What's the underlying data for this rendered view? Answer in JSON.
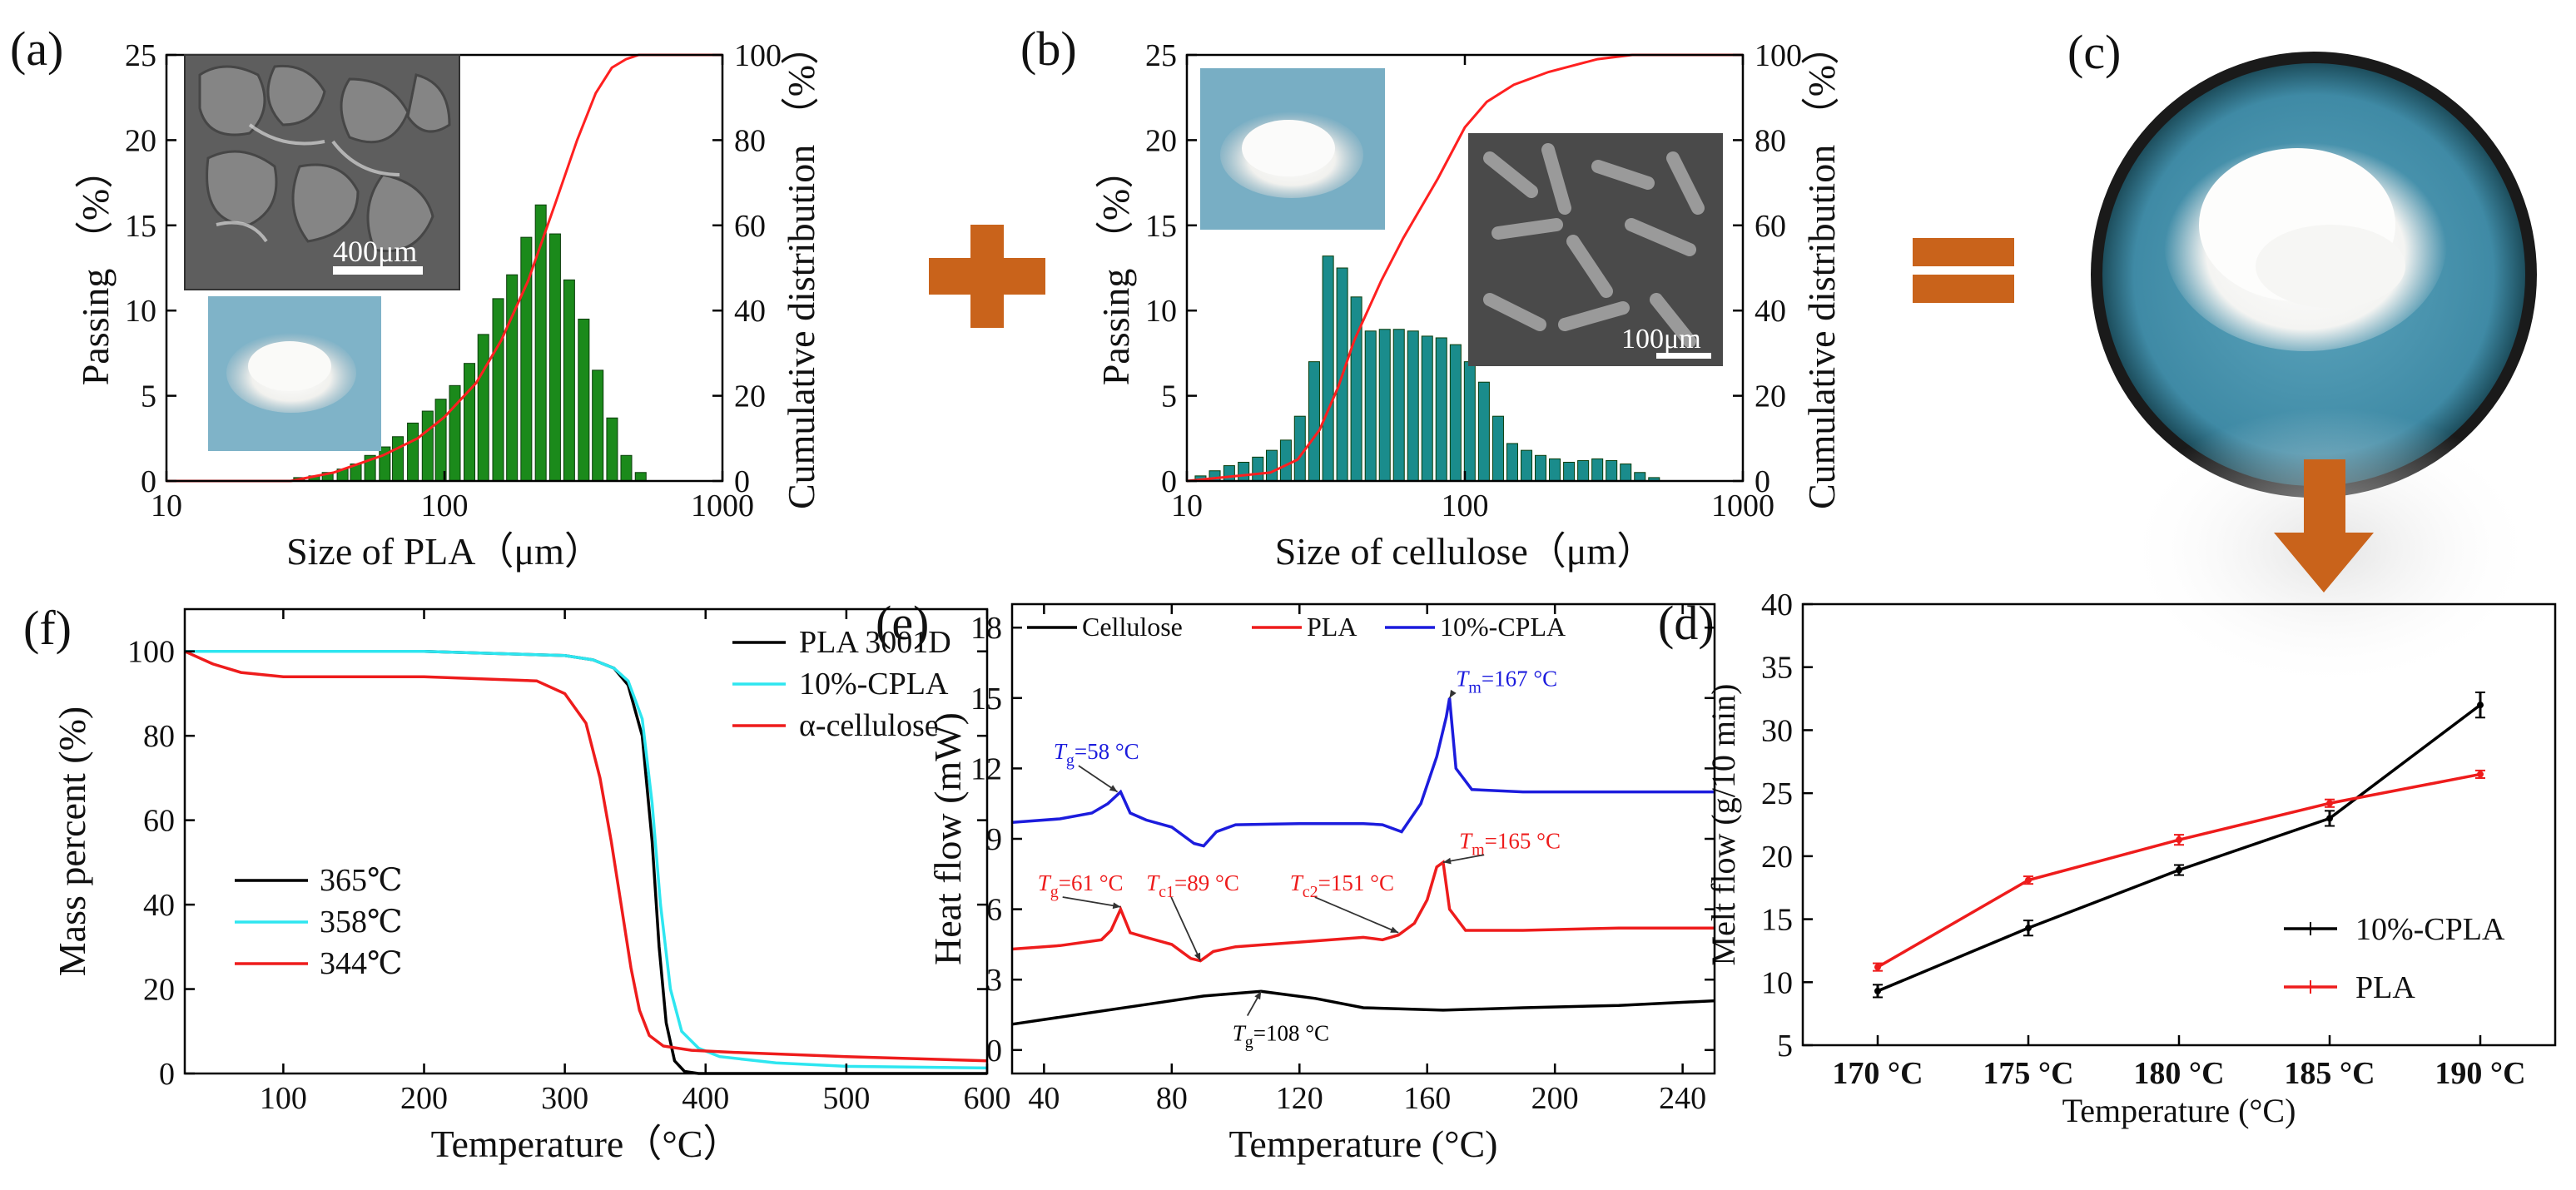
{
  "colors": {
    "bar_green": "#1b8a1b",
    "bar_teal": "#1a8c8c",
    "cum_red": "#ff2020",
    "plus_orange": "#c9631b",
    "sem_dark": "#6a6a6a",
    "powder_bg": "#7fb3c8",
    "black": "#000000",
    "cyan": "#2ee6f0",
    "red": "#ee1c1c",
    "blue": "#1c1cdd"
  },
  "panels": {
    "a": {
      "label": "(a)",
      "xlabel": "Size of PLA（μm）",
      "ylabel": "Passing  （%）",
      "y2label": "Cumulative distribution  （%）",
      "scale_bar": "400μm"
    },
    "b": {
      "label": "(b)",
      "xlabel": "Size of cellulose（μm）",
      "ylabel": "Passing  （%）",
      "y2label": "Cumulative distribution  （%）",
      "scale_bar": "100μm"
    },
    "c": {
      "label": "(c)"
    },
    "d": {
      "label": "(d)"
    },
    "e": {
      "label": "(e)"
    },
    "f": {
      "label": "(f)"
    }
  },
  "chart_data": [
    {
      "id": "a",
      "type": "bar",
      "xscale": "log",
      "xlim": [
        10,
        1000
      ],
      "ylim": [
        0,
        25
      ],
      "y2lim": [
        0,
        100
      ],
      "xticks": [
        10,
        100,
        1000
      ],
      "xtick_labels": [
        "10",
        "100",
        "1000"
      ],
      "yticks": [
        0,
        5,
        10,
        15,
        20,
        25
      ],
      "ytick_labels": [
        "0",
        "5",
        "10",
        "15",
        "20",
        "25"
      ],
      "y2ticks": [
        0,
        20,
        40,
        60,
        80,
        100
      ],
      "y2tick_labels": [
        "0",
        "20",
        "40",
        "60",
        "80",
        "100"
      ],
      "x": [
        30,
        34,
        38,
        43,
        48,
        54,
        61,
        68,
        77,
        87,
        97,
        109,
        123,
        138,
        156,
        175,
        197,
        222,
        250,
        281,
        317,
        356,
        401,
        451,
        508
      ],
      "values": [
        0.2,
        0.3,
        0.5,
        0.7,
        1.0,
        1.5,
        2.0,
        2.6,
        3.4,
        4.1,
        4.8,
        5.6,
        6.9,
        8.6,
        10.7,
        12.1,
        14.3,
        16.2,
        14.5,
        11.8,
        9.5,
        6.5,
        3.7,
        1.5,
        0.5
      ],
      "cumulative": {
        "x": [
          10,
          28,
          40,
          60,
          80,
          100,
          130,
          160,
          200,
          250,
          300,
          350,
          400,
          450,
          500,
          600,
          1000
        ],
        "y": [
          0,
          0,
          2,
          6,
          10,
          15,
          23,
          33,
          47,
          65,
          80,
          91,
          97,
          99,
          100,
          100,
          100
        ]
      }
    },
    {
      "id": "b",
      "type": "bar",
      "xscale": "log",
      "xlim": [
        10,
        1000
      ],
      "ylim": [
        0,
        25
      ],
      "y2lim": [
        0,
        100
      ],
      "xticks": [
        10,
        100,
        1000
      ],
      "xtick_labels": [
        "10",
        "100",
        "1000"
      ],
      "yticks": [
        0,
        5,
        10,
        15,
        20,
        25
      ],
      "ytick_labels": [
        "0",
        "5",
        "10",
        "15",
        "20",
        "25"
      ],
      "y2ticks": [
        0,
        20,
        40,
        60,
        80,
        100
      ],
      "y2tick_labels": [
        "0",
        "20",
        "40",
        "60",
        "80",
        "100"
      ],
      "x": [
        11.2,
        12.6,
        14.2,
        16.0,
        18.0,
        20.2,
        22.7,
        25.5,
        28.7,
        32.2,
        36.2,
        40.7,
        45.8,
        51.5,
        57.9,
        65.1,
        73.2,
        82.3,
        92.6,
        104.1,
        117.1,
        131.7,
        148.1,
        166.6,
        187.3,
        210.6,
        236.9,
        266.4,
        299.6,
        336.9,
        378.9,
        426.1,
        479.2
      ],
      "values": [
        0.3,
        0.6,
        0.9,
        1.1,
        1.4,
        1.8,
        2.4,
        3.8,
        7.0,
        13.2,
        12.5,
        10.8,
        8.8,
        8.9,
        8.9,
        8.8,
        8.5,
        8.4,
        8.0,
        7.0,
        5.8,
        3.8,
        2.2,
        1.8,
        1.5,
        1.3,
        1.1,
        1.2,
        1.3,
        1.2,
        1.0,
        0.5,
        0.2
      ],
      "cumulative": {
        "x": [
          10,
          20,
          25,
          30,
          35,
          40,
          50,
          60,
          80,
          100,
          120,
          150,
          200,
          300,
          400,
          500,
          1000
        ],
        "y": [
          0,
          2,
          5,
          12,
          22,
          33,
          47,
          57,
          71,
          83,
          89,
          93,
          96,
          99,
          100,
          100,
          100
        ]
      }
    },
    {
      "id": "d",
      "type": "line",
      "xlabel": "Temperature (°C)",
      "ylabel": "Melt flow (g/10 min)",
      "ylim": [
        5,
        40
      ],
      "categories": [
        "170 °C",
        "175 °C",
        "180 °C",
        "185 °C",
        "190 °C"
      ],
      "yticks": [
        5,
        10,
        15,
        20,
        25,
        30,
        35,
        40
      ],
      "ytick_labels": [
        "5",
        "10",
        "15",
        "20",
        "25",
        "30",
        "35",
        "40"
      ],
      "series": [
        {
          "name": "10%-CPLA",
          "values": [
            9.3,
            14.3,
            18.9,
            23.0,
            32.0
          ],
          "errors": [
            0.5,
            0.6,
            0.4,
            0.6,
            1.0
          ]
        },
        {
          "name": "PLA",
          "values": [
            11.2,
            18.1,
            21.3,
            24.2,
            26.5
          ],
          "errors": [
            0.3,
            0.3,
            0.4,
            0.3,
            0.3
          ]
        }
      ]
    },
    {
      "id": "e",
      "type": "line",
      "xlabel": "Temperature (°C)",
      "ylabel": "Heat flow (mW)",
      "xlim": [
        30,
        250
      ],
      "ylim": [
        -1,
        19
      ],
      "xticks": [
        40,
        80,
        120,
        160,
        200,
        240
      ],
      "xtick_labels": [
        "40",
        "80",
        "120",
        "160",
        "200",
        "240"
      ],
      "yticks": [
        0,
        3,
        6,
        9,
        12,
        15,
        18
      ],
      "ytick_labels": [
        "0",
        "3",
        "6",
        "9",
        "12",
        "15",
        "18"
      ],
      "series": [
        {
          "name": "Cellulose",
          "x": [
            30,
            50,
            70,
            90,
            108,
            125,
            140,
            165,
            190,
            220,
            250
          ],
          "y": [
            1.1,
            1.5,
            1.9,
            2.3,
            2.5,
            2.2,
            1.8,
            1.7,
            1.8,
            1.9,
            2.1
          ]
        },
        {
          "name": "PLA",
          "x": [
            30,
            45,
            58,
            61,
            64,
            67,
            72,
            80,
            86,
            89,
            93,
            100,
            120,
            140,
            146,
            151,
            156,
            160,
            163,
            165,
            167,
            172,
            190,
            220,
            250
          ],
          "y": [
            4.3,
            4.45,
            4.7,
            5.1,
            6.0,
            5.0,
            4.8,
            4.5,
            3.9,
            3.8,
            4.2,
            4.4,
            4.6,
            4.8,
            4.7,
            4.9,
            5.4,
            6.4,
            7.8,
            8.0,
            6.0,
            5.1,
            5.1,
            5.2,
            5.2
          ]
        },
        {
          "name": "10%-CPLA",
          "x": [
            30,
            45,
            55,
            60,
            64,
            67,
            72,
            80,
            87,
            90,
            94,
            100,
            120,
            140,
            146,
            152,
            158,
            163,
            166,
            167,
            169,
            174,
            190,
            220,
            250
          ],
          "y": [
            9.7,
            9.85,
            10.1,
            10.5,
            11.0,
            10.1,
            9.8,
            9.5,
            8.8,
            8.7,
            9.3,
            9.6,
            9.65,
            9.65,
            9.6,
            9.3,
            10.5,
            12.5,
            14.2,
            15.0,
            12.0,
            11.1,
            11.0,
            11.0,
            11.0
          ]
        }
      ],
      "annotations": [
        {
          "text": "=167 °C",
          "sym": "T",
          "sub": "m",
          "x": 169,
          "y": 15.5
        },
        {
          "text": "=58 °C",
          "sym": "T",
          "sub": "g",
          "x": 43,
          "y": 12.4
        },
        {
          "text": "=61 °C",
          "sym": "T",
          "sub": "g",
          "x": 38,
          "y": 6.8
        },
        {
          "text": "=89 °C",
          "sym": "T",
          "sub": "c1",
          "x": 72,
          "y": 6.8
        },
        {
          "text": "=151 °C",
          "sym": "T",
          "sub": "c2",
          "x": 117,
          "y": 6.8
        },
        {
          "text": "=165 °C",
          "sym": "T",
          "sub": "m",
          "x": 170,
          "y": 8.6
        },
        {
          "text": "=108 °C",
          "sym": "T",
          "sub": "g",
          "x": 99,
          "y": 0.4
        }
      ]
    },
    {
      "id": "f",
      "type": "line",
      "xlabel": "Temperature（°C）",
      "ylabel": "Mass percent (%)",
      "xlim": [
        30,
        600
      ],
      "ylim": [
        0,
        110
      ],
      "xticks": [
        100,
        200,
        300,
        400,
        500,
        600
      ],
      "xtick_labels": [
        "100",
        "200",
        "300",
        "400",
        "500",
        "600"
      ],
      "yticks": [
        0,
        20,
        40,
        60,
        80,
        100
      ],
      "ytick_labels": [
        "0",
        "20",
        "40",
        "60",
        "80",
        "100"
      ],
      "series": [
        {
          "name": "PLA 3001D",
          "x": [
            30,
            100,
            200,
            300,
            320,
            335,
            345,
            355,
            362,
            367,
            372,
            378,
            385,
            395,
            600
          ],
          "y": [
            100,
            100,
            100,
            99,
            98,
            96,
            92,
            80,
            55,
            30,
            12,
            3,
            0.5,
            0,
            0
          ]
        },
        {
          "name": "10%-CPLA",
          "x": [
            30,
            100,
            200,
            300,
            320,
            335,
            345,
            355,
            362,
            368,
            375,
            383,
            395,
            410,
            450,
            500,
            600
          ],
          "y": [
            100,
            100,
            100,
            99,
            98,
            96,
            93,
            84,
            64,
            40,
            20,
            10,
            6,
            4,
            2.5,
            1.7,
            1.3
          ]
        },
        {
          "name": "α-cellulose",
          "x": [
            30,
            50,
            70,
            100,
            200,
            280,
            300,
            315,
            325,
            333,
            340,
            347,
            353,
            360,
            370,
            390,
            420,
            500,
            600
          ],
          "y": [
            100,
            97,
            95,
            94,
            94,
            93,
            90,
            83,
            70,
            55,
            40,
            25,
            15,
            9,
            6.5,
            5.5,
            5,
            4,
            3
          ]
        }
      ],
      "legend": [
        "PLA 3001D",
        "10%-CPLA",
        "α-cellulose"
      ],
      "onset_legend": [
        "365℃",
        "358℃",
        "344℃"
      ]
    }
  ]
}
